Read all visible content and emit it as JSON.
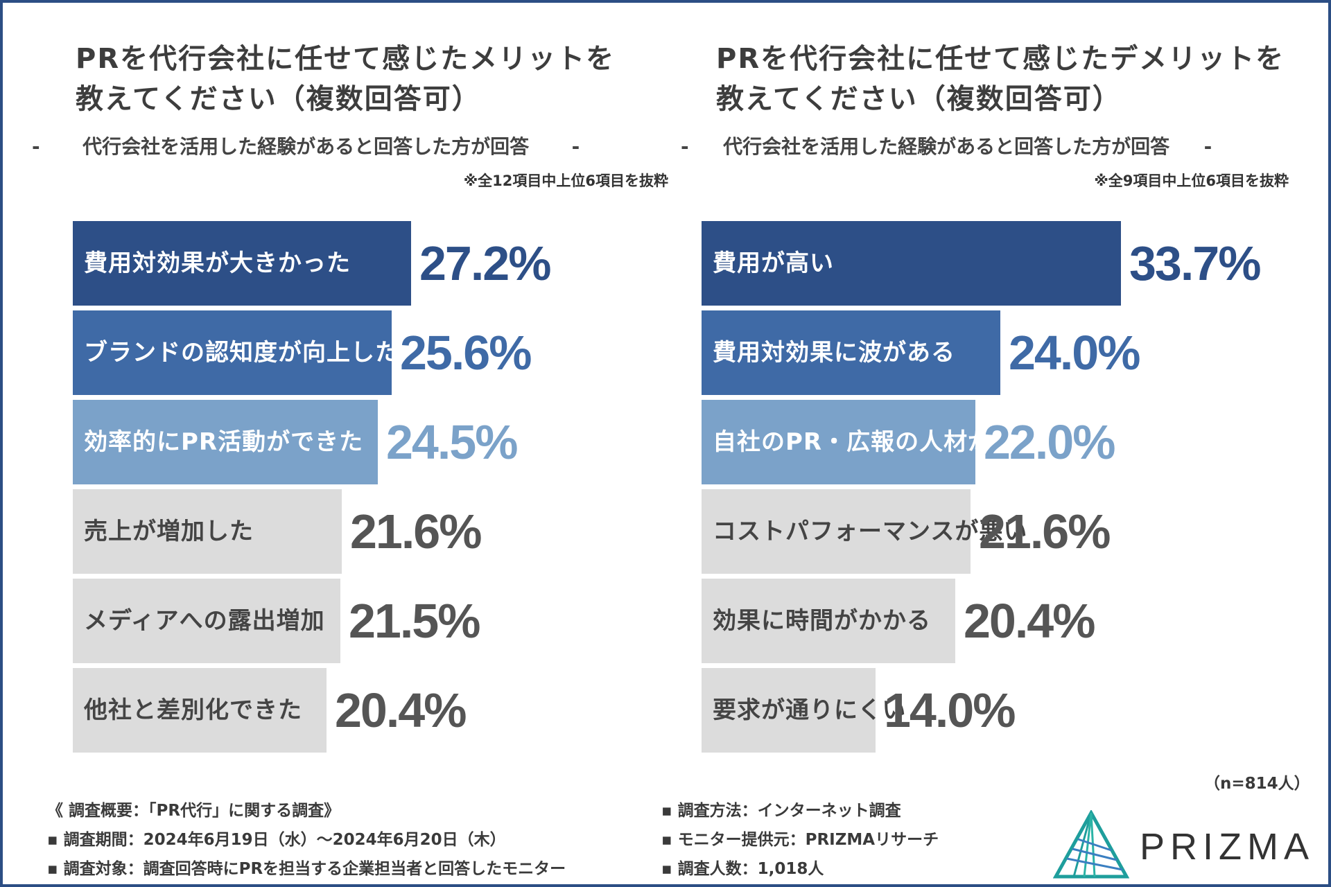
{
  "chart_data": [
    {
      "type": "bar",
      "orientation": "horizontal",
      "title_lines": [
        "PRを代行会社に任せて感じたメリットを",
        "教えてください（複数回答可）"
      ],
      "subtitle": "代行会社を活用した経験があると回答した方が回答",
      "note": "※全12項目中上位6項目を抜粋",
      "categories": [
        "費用対効果が大きかった",
        "ブランドの認知度が向上した",
        "効率的にPR活動ができた",
        "売上が増加した",
        "メディアへの露出増加",
        "他社と差別化できた"
      ],
      "values": [
        27.2,
        25.6,
        24.5,
        21.6,
        21.5,
        20.4
      ],
      "value_labels": [
        "27.2%",
        "25.6%",
        "24.5%",
        "21.6%",
        "21.5%",
        "20.4%"
      ],
      "unit": "%",
      "bar_colors": [
        "#2d4f87",
        "#3f6aa6",
        "#7ba2c9",
        "#dcdcdc",
        "#dcdcdc",
        "#dcdcdc"
      ],
      "label_colors": [
        "#ffffff",
        "#ffffff",
        "#ffffff",
        "#444444",
        "#444444",
        "#444444"
      ],
      "value_colors": [
        "#2d4f87",
        "#3f6aa6",
        "#7ba2c9",
        "#555555",
        "#555555",
        "#555555"
      ]
    },
    {
      "type": "bar",
      "orientation": "horizontal",
      "title_lines": [
        "PRを代行会社に任せて感じたデメリットを",
        "教えてください（複数回答可）"
      ],
      "subtitle": "代行会社を活用した経験があると回答した方が回答",
      "note": "※全9項目中上位6項目を抜粋",
      "categories": [
        "費用が高い",
        "費用対効果に波がある",
        "自社のPR・広報の人材が育たない",
        "コストパフォーマンスが悪い",
        "効果に時間がかかる",
        "要求が通りにくい"
      ],
      "values": [
        33.7,
        24.0,
        22.0,
        21.6,
        20.4,
        14.0
      ],
      "value_labels": [
        "33.7%",
        "24.0%",
        "22.0%",
        "21.6%",
        "20.4%",
        "14.0%"
      ],
      "unit": "%",
      "bar_colors": [
        "#2d4f87",
        "#3f6aa6",
        "#7ba2c9",
        "#dcdcdc",
        "#dcdcdc",
        "#dcdcdc"
      ],
      "label_colors": [
        "#ffffff",
        "#ffffff",
        "#ffffff",
        "#444444",
        "#444444",
        "#444444"
      ],
      "value_colors": [
        "#2d4f87",
        "#3f6aa6",
        "#7ba2c9",
        "#555555",
        "#555555",
        "#555555"
      ]
    }
  ],
  "dash": "-",
  "sample_size": "（n=814人）",
  "footer": {
    "overview": "《 調査概要：「PR代行」に関する調査》",
    "period": "▪ 調査期間：2024年6月19日（水）～2024年6月20日（木）",
    "target": "▪ 調査対象：調査回答時にPRを担当する企業担当者と回答したモニター",
    "method": "▪ 調査方法：インターネット調査",
    "provider": "▪ モニター提供元：PRIZMAリサーチ",
    "count": "▪ 調査人数：1,018人"
  },
  "brand": {
    "name": "PRIZMA",
    "color": "#1e9e9c"
  }
}
